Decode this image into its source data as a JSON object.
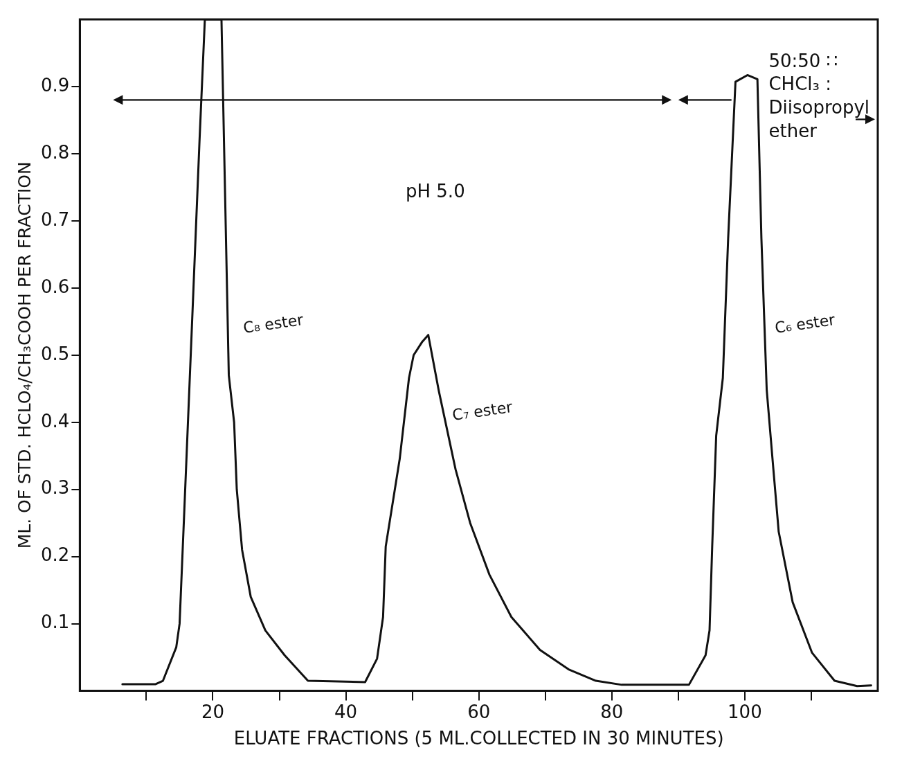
{
  "chart_data": {
    "type": "line",
    "xlabel": "ELUATE FRACTIONS (5 ML.COLLECTED IN 30 MINUTES)",
    "ylabel": "ML. OF STD. HCLO₄/CH₃COOH PER FRACTION",
    "xlim": [
      0,
      120
    ],
    "ylim": [
      0,
      1
    ],
    "xticks": [
      {
        "value": 10,
        "label": null
      },
      20,
      {
        "value": 30,
        "label": null
      },
      40,
      {
        "value": 50,
        "label": null
      },
      60,
      {
        "value": 70,
        "label": null
      },
      80,
      {
        "value": 90,
        "label": null
      },
      100,
      {
        "value": 110,
        "label": null
      }
    ],
    "yticks": [
      0.1,
      0.2,
      0.3,
      0.4,
      0.5,
      0.6,
      0.7,
      0.8,
      0.9
    ],
    "grid": false,
    "legend": false,
    "marker": "none",
    "line_style": "solid",
    "series": [
      {
        "color": "#111111",
        "x": [
          6.4,
          11.4,
          12.5,
          14.5,
          15,
          15.8,
          16.8,
          18,
          18.8,
          21.3,
          22.4,
          23.2,
          23.6,
          24.4,
          25.7,
          27.9,
          30.8,
          34.3,
          42.9,
          44.7,
          45.6,
          46,
          48.1,
          49.5,
          50.2,
          51.5,
          52.4,
          54,
          56.5,
          58.7,
          61.6,
          64.9,
          69.2,
          73.5,
          77.6,
          81.5,
          91.6,
          94.1,
          94.7,
          95.1,
          95.7,
          96.7,
          97.5,
          98.6,
          100.4,
          101.9,
          102.5,
          103.3,
          104.3,
          105.1,
          107.2,
          110.1,
          113.5,
          116.9,
          119
        ],
        "values": [
          0.01,
          0.01,
          0.015,
          0.065,
          0.1,
          0.29,
          0.53,
          0.82,
          1.0,
          1.0,
          0.47,
          0.4,
          0.3,
          0.21,
          0.14,
          0.09,
          0.053,
          0.015,
          0.013,
          0.048,
          0.11,
          0.215,
          0.345,
          0.466,
          0.5,
          0.52,
          0.53,
          0.446,
          0.33,
          0.25,
          0.173,
          0.11,
          0.061,
          0.032,
          0.015,
          0.009,
          0.009,
          0.053,
          0.09,
          0.215,
          0.38,
          0.466,
          0.674,
          0.907,
          0.917,
          0.911,
          0.674,
          0.448,
          0.33,
          0.237,
          0.132,
          0.057,
          0.015,
          0.007,
          0.008
        ]
      }
    ],
    "annotations": [
      "C₈ ester",
      "C₇ ester",
      "C₆ ester",
      "pH 5.0",
      "50:50 ∷ CHCl₃ : Diisopropyl ether"
    ]
  }
}
